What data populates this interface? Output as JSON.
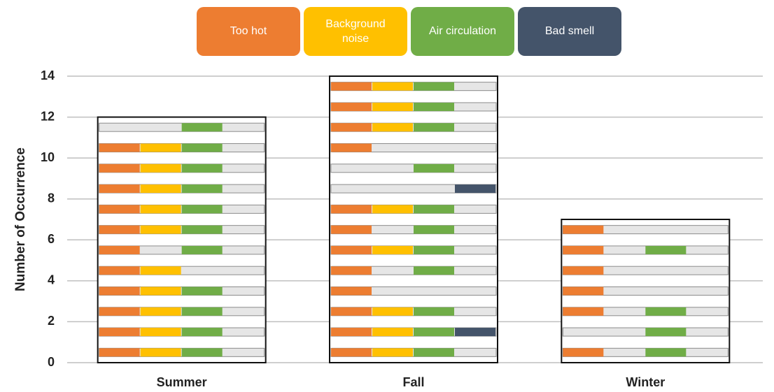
{
  "chart_data": {
    "type": "bar",
    "y_label": "Number of Occurrence",
    "categories": [
      "Summer",
      "Fall",
      "Winter"
    ],
    "values": [
      12,
      14,
      7
    ],
    "ylim": [
      0,
      14
    ],
    "yticks": [
      0,
      2,
      4,
      6,
      8,
      10,
      12,
      14
    ],
    "grid": true,
    "series": [
      {
        "name": "Too hot",
        "color": "#ed7d31",
        "occurrences": [
          [
            1,
            1,
            1,
            1,
            1,
            1,
            1,
            1,
            1,
            1,
            1,
            0
          ],
          [
            1,
            1,
            1,
            1,
            1,
            1,
            1,
            1,
            0,
            0,
            1,
            1,
            1,
            1
          ],
          [
            1,
            0,
            1,
            1,
            1,
            1,
            1
          ]
        ]
      },
      {
        "name": "Background noise",
        "color": "#ffc000",
        "occurrences": [
          [
            1,
            1,
            1,
            1,
            1,
            0,
            1,
            1,
            1,
            1,
            1,
            0
          ],
          [
            1,
            1,
            1,
            0,
            0,
            1,
            0,
            1,
            0,
            0,
            0,
            1,
            1,
            1
          ],
          [
            0,
            0,
            0,
            0,
            0,
            0,
            0
          ]
        ]
      },
      {
        "name": "Air circulation",
        "color": "#70ad47",
        "occurrences": [
          [
            1,
            1,
            1,
            1,
            0,
            1,
            1,
            1,
            1,
            1,
            1,
            1
          ],
          [
            1,
            1,
            1,
            0,
            1,
            1,
            1,
            1,
            0,
            1,
            0,
            1,
            1,
            1
          ],
          [
            1,
            1,
            1,
            0,
            0,
            1,
            0
          ]
        ]
      },
      {
        "name": "Bad smell",
        "color": "#44546a",
        "occurrences": [
          [
            0,
            0,
            0,
            0,
            0,
            0,
            0,
            0,
            0,
            0,
            0,
            0
          ],
          [
            0,
            1,
            0,
            0,
            0,
            0,
            0,
            0,
            1,
            0,
            0,
            0,
            0,
            0
          ],
          [
            0,
            0,
            0,
            0,
            0,
            0,
            0
          ]
        ]
      }
    ]
  }
}
